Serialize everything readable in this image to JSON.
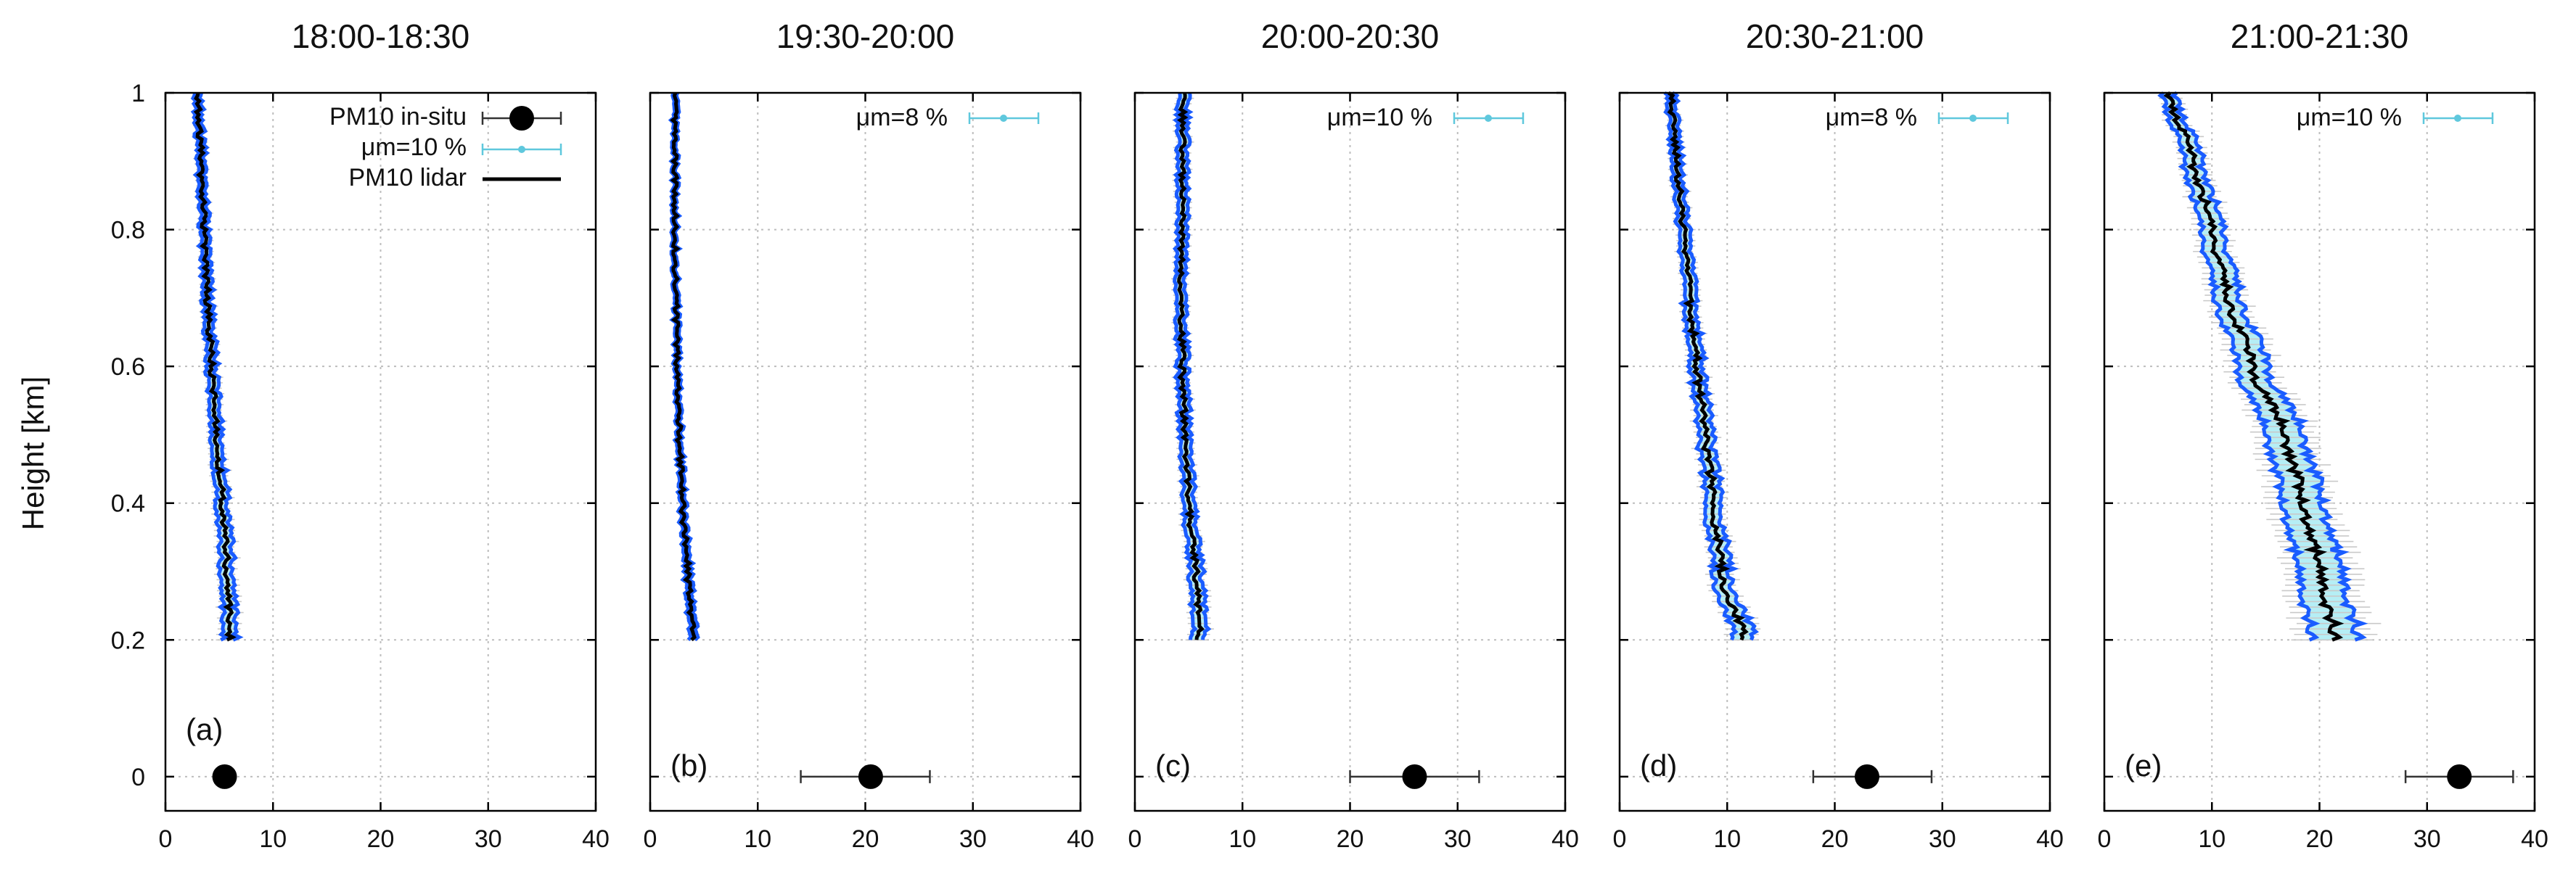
{
  "figure": {
    "ylabel": "Height [km]"
  },
  "colors": {
    "lidar": "#000000",
    "envelope": "#1a5cff",
    "fill": "#b5eef5",
    "errorbar": "#c9c9c9",
    "insitu": "#000000",
    "mu_marker": "#5fc8dd",
    "grid": "#bdbdbd"
  },
  "legend": {
    "insitu_label": "PM10 in-situ",
    "mu_label": "μm=10 %",
    "lidar_label": "PM10 lidar"
  },
  "chart_data": [
    {
      "type": "line",
      "title": "18:00-18:30",
      "panel_label": "(a)",
      "mu_label": "",
      "xlim": [
        0,
        40
      ],
      "ylim": [
        -0.05,
        1
      ],
      "xticks": [
        0,
        10,
        20,
        30,
        40
      ],
      "yticks": [
        0,
        0.2,
        0.4,
        0.6,
        0.8,
        1
      ],
      "grid": true,
      "insitu": {
        "value": 5.5,
        "height": 0,
        "err": [
          5.5,
          5.5
        ]
      },
      "lidar": {
        "height": [
          0.2,
          0.3,
          0.4,
          0.5,
          0.6,
          0.7,
          0.8,
          0.9,
          1.0
        ],
        "value": [
          6.0,
          5.7,
          5.3,
          4.8,
          4.3,
          3.9,
          3.6,
          3.3,
          3.0
        ],
        "rel_uncertainty_pct": 10
      }
    },
    {
      "type": "line",
      "title": "19:30-20:00",
      "panel_label": "(b)",
      "mu_label": "μm=8 %",
      "xlim": [
        0,
        40
      ],
      "ylim": [
        -0.05,
        1
      ],
      "xticks": [
        0,
        10,
        20,
        30,
        40
      ],
      "yticks": [
        0,
        0.2,
        0.4,
        0.6,
        0.8,
        1
      ],
      "grid": true,
      "insitu": {
        "value": 20.5,
        "height": 0,
        "err": [
          14,
          26
        ]
      },
      "lidar": {
        "height": [
          0.2,
          0.3,
          0.4,
          0.5,
          0.6,
          0.7,
          0.8,
          0.9,
          1.0
        ],
        "value": [
          4.0,
          3.5,
          3.0,
          2.7,
          2.5,
          2.4,
          2.3,
          2.3,
          2.3
        ],
        "rel_uncertainty_pct": 8
      }
    },
    {
      "type": "line",
      "title": "20:00-20:30",
      "panel_label": "(c)",
      "mu_label": "μm=10 %",
      "xlim": [
        0,
        40
      ],
      "ylim": [
        -0.05,
        1
      ],
      "xticks": [
        0,
        10,
        20,
        30,
        40
      ],
      "yticks": [
        0,
        0.2,
        0.4,
        0.6,
        0.8,
        1
      ],
      "grid": true,
      "insitu": {
        "value": 26,
        "height": 0,
        "err": [
          20,
          32
        ]
      },
      "lidar": {
        "height": [
          0.2,
          0.3,
          0.4,
          0.5,
          0.6,
          0.7,
          0.8,
          0.9,
          1.0
        ],
        "value": [
          6.0,
          5.7,
          5.0,
          4.6,
          4.4,
          4.3,
          4.4,
          4.4,
          4.5
        ],
        "rel_uncertainty_pct": 10
      }
    },
    {
      "type": "line",
      "title": "20:30-21:00",
      "panel_label": "(d)",
      "mu_label": "μm=8 %",
      "xlim": [
        0,
        40
      ],
      "ylim": [
        -0.05,
        1
      ],
      "xticks": [
        0,
        10,
        20,
        30,
        40
      ],
      "yticks": [
        0,
        0.2,
        0.4,
        0.6,
        0.8,
        1
      ],
      "grid": true,
      "insitu": {
        "value": 23,
        "height": 0,
        "err": [
          18,
          29
        ]
      },
      "lidar": {
        "height": [
          0.2,
          0.3,
          0.4,
          0.5,
          0.6,
          0.7,
          0.8,
          0.9,
          1.0
        ],
        "value": [
          11.5,
          9.5,
          8.7,
          8.0,
          7.2,
          6.5,
          5.9,
          5.3,
          4.8
        ],
        "rel_uncertainty_pct": 8
      }
    },
    {
      "type": "line",
      "title": "21:00-21:30",
      "panel_label": "(e)",
      "mu_label": "μm=10 %",
      "xlim": [
        0,
        40
      ],
      "ylim": [
        -0.05,
        1
      ],
      "xticks": [
        0,
        10,
        20,
        30,
        40
      ],
      "yticks": [
        0,
        0.2,
        0.4,
        0.6,
        0.8,
        1
      ],
      "grid": true,
      "insitu": {
        "value": 33,
        "height": 0,
        "err": [
          28,
          38
        ]
      },
      "lidar": {
        "height": [
          0.2,
          0.3,
          0.4,
          0.5,
          0.6,
          0.7,
          0.8,
          0.9,
          1.0
        ],
        "value": [
          21.5,
          20.0,
          18.5,
          16.8,
          13.8,
          11.5,
          10.0,
          8.2,
          6.0
        ],
        "rel_uncertainty_pct": 10
      }
    }
  ]
}
